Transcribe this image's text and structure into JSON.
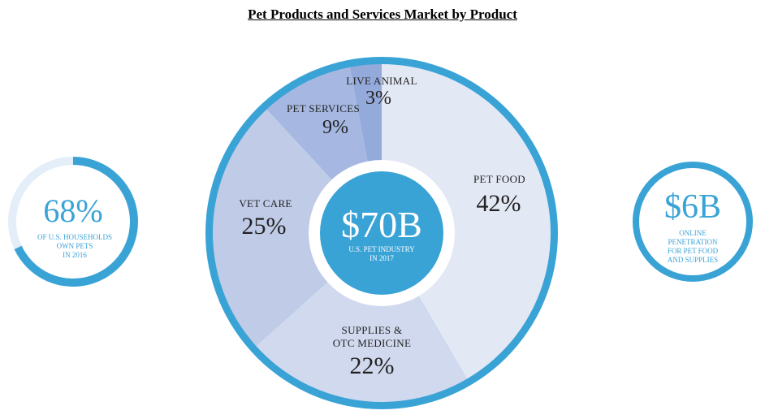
{
  "title": "Pet Products and Services Market by Product",
  "colors": {
    "ring": "#3aa3d6",
    "center": "#3aa3d6",
    "pet_food": "#e3e8f5",
    "supplies": "#d0d9ee",
    "vet_care": "#bfcbe7",
    "pet_services": "#a6b8e2",
    "live_animal": "#94aadb",
    "households_track": "#e3eef8"
  },
  "chart_data": {
    "type": "pie",
    "title": "Pet Products and Services Market by Product",
    "slices": [
      {
        "key": "pet_food",
        "label": "PET FOOD",
        "pct_label": "42%",
        "value": 42
      },
      {
        "key": "supplies",
        "label_lines": [
          "SUPPLIES &",
          "OTC MEDICINE"
        ],
        "pct_label": "22%",
        "value": 22
      },
      {
        "key": "vet_care",
        "label": "VET CARE",
        "pct_label": "25%",
        "value": 25
      },
      {
        "key": "pet_services",
        "label": "PET SERVICES",
        "pct_label": "9%",
        "value": 9
      },
      {
        "key": "live_animal",
        "label": "LIVE ANIMAL",
        "pct_label": "3%",
        "value": 3
      }
    ],
    "center": {
      "value": "$70B",
      "caption_lines": [
        "U.S. PET INDUSTRY",
        "IN 2017"
      ]
    }
  },
  "households": {
    "value_text": "68%",
    "value": 68,
    "caption_lines": [
      "OF U.S. HOUSEHOLDS",
      "OWN PETS",
      "IN 2016"
    ]
  },
  "online": {
    "value_text": "$6B",
    "caption_lines": [
      "ONLINE",
      "PENETRATION",
      "FOR PET FOOD",
      "AND SUPPLIES"
    ]
  }
}
